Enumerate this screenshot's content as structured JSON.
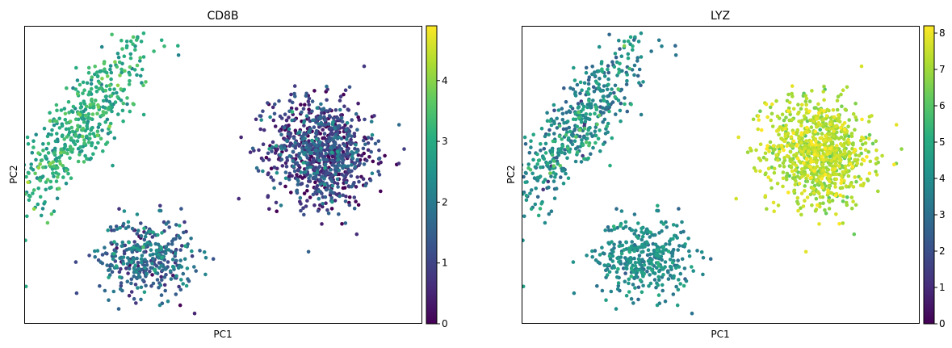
{
  "figure": {
    "panels": [
      {
        "title": "CD8B",
        "xlabel": "PC1",
        "ylabel": "PC2",
        "colorbar_ticks": [
          "0",
          "1",
          "2",
          "3",
          "4"
        ]
      },
      {
        "title": "LYZ",
        "xlabel": "PC1",
        "ylabel": "PC2",
        "colorbar_ticks": [
          "0",
          "1",
          "2",
          "3",
          "4",
          "5",
          "6",
          "7",
          "8"
        ]
      }
    ]
  },
  "chart_data": [
    {
      "type": "scatter",
      "title": "CD8B",
      "xlabel": "PC1",
      "ylabel": "PC2",
      "colormap": "viridis",
      "color_range": [
        0,
        4.9
      ],
      "colorbar_ticks": [
        0,
        1,
        2,
        3,
        4
      ],
      "xlim": [
        -5,
        12
      ],
      "ylim": [
        -6.5,
        6.5
      ],
      "grid": false,
      "x_ticks_shown": false,
      "y_ticks_shown": false,
      "clusters": [
        {
          "n": 500,
          "center": [
            -2.6,
            2.1
          ],
          "spread": [
            1.5,
            1.9
          ],
          "correlation": 0.82,
          "value_mean": 3.0,
          "value_sd": 0.45
        },
        {
          "n": 900,
          "center": [
            7.7,
            1.0
          ],
          "spread": [
            1.1,
            1.15
          ],
          "correlation": -0.1,
          "value_mean": 0.9,
          "value_sd": 0.75
        },
        {
          "n": 380,
          "center": [
            0.2,
            -3.6
          ],
          "spread": [
            1.0,
            0.85
          ],
          "correlation": 0.0,
          "value_mean": 1.6,
          "value_sd": 0.65
        }
      ]
    },
    {
      "type": "scatter",
      "title": "LYZ",
      "xlabel": "PC1",
      "ylabel": "PC2",
      "colormap": "viridis",
      "color_range": [
        0,
        8.2
      ],
      "colorbar_ticks": [
        0,
        1,
        2,
        3,
        4,
        5,
        6,
        7,
        8
      ],
      "xlim": [
        -5,
        12
      ],
      "ylim": [
        -6.5,
        6.5
      ],
      "grid": false,
      "x_ticks_shown": false,
      "y_ticks_shown": false,
      "clusters": [
        {
          "n": 500,
          "center": [
            -2.6,
            2.1
          ],
          "spread": [
            1.5,
            1.9
          ],
          "correlation": 0.82,
          "value_mean": 3.8,
          "value_sd": 1.0
        },
        {
          "n": 900,
          "center": [
            7.7,
            1.0
          ],
          "spread": [
            1.1,
            1.15
          ],
          "correlation": -0.1,
          "value_mean": 7.2,
          "value_sd": 0.55
        },
        {
          "n": 380,
          "center": [
            0.2,
            -3.6
          ],
          "spread": [
            1.0,
            0.85
          ],
          "correlation": 0.0,
          "value_mean": 3.9,
          "value_sd": 0.6
        }
      ]
    }
  ]
}
